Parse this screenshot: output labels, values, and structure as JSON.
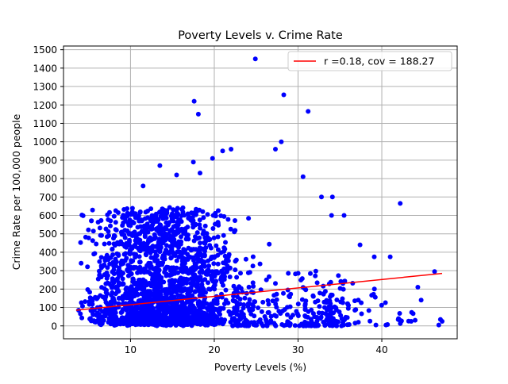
{
  "chart_data": {
    "type": "scatter",
    "title": "Poverty Levels v. Crime Rate",
    "xlabel": "Poverty Levels (%)",
    "ylabel": "Crime Rate per 100,000 people",
    "xlim": [
      2,
      49
    ],
    "ylim": [
      -70,
      1520
    ],
    "xticks": [
      10,
      20,
      30,
      40
    ],
    "yticks": [
      0,
      100,
      200,
      300,
      400,
      500,
      600,
      700,
      800,
      900,
      1000,
      1100,
      1200,
      1300,
      1400,
      1500
    ],
    "grid": true,
    "legend": {
      "placement": "top-right",
      "entries": [
        {
          "label": "r =0.18, cov = 188.27",
          "color": "#ff0000",
          "kind": "line"
        }
      ]
    },
    "series": [
      {
        "kind": "scatter",
        "color": "#0000ff",
        "note_points": "highlighted outliers only; remaining dense cloud drawn as many points",
        "points": [
          [
            3.8,
            85
          ],
          [
            4.1,
            340
          ],
          [
            5.9,
            445
          ],
          [
            7.4,
            490
          ],
          [
            9.0,
            510
          ],
          [
            10.1,
            610
          ],
          [
            11.5,
            760
          ],
          [
            13.5,
            870
          ],
          [
            15.5,
            820
          ],
          [
            17.6,
            1220
          ],
          [
            18.1,
            1150
          ],
          [
            18.3,
            830
          ],
          [
            17.5,
            890
          ],
          [
            19.8,
            910
          ],
          [
            21.0,
            950
          ],
          [
            22.0,
            960
          ],
          [
            24.9,
            1450
          ],
          [
            27.3,
            960
          ],
          [
            28.0,
            1000
          ],
          [
            28.3,
            1255
          ],
          [
            31.2,
            1165
          ],
          [
            30.6,
            810
          ],
          [
            32.8,
            700
          ],
          [
            34.1,
            700
          ],
          [
            34.0,
            600
          ],
          [
            35.5,
            600
          ],
          [
            37.4,
            440
          ],
          [
            39.1,
            375
          ],
          [
            41.0,
            375
          ],
          [
            42.2,
            665
          ],
          [
            44.3,
            210
          ],
          [
            44.7,
            140
          ],
          [
            46.3,
            295
          ],
          [
            46.8,
            5
          ],
          [
            47.2,
            25
          ],
          [
            47.0,
            35
          ],
          [
            43.5,
            25
          ],
          [
            42.0,
            40
          ],
          [
            40.5,
            5
          ],
          [
            39.3,
            5
          ],
          [
            37.2,
            20
          ],
          [
            36.0,
            95
          ]
        ]
      },
      {
        "kind": "line",
        "name": "r =0.18, cov = 188.27",
        "color": "#ff0000",
        "x": [
          3.5,
          47.2
        ],
        "y": [
          85,
          285
        ]
      }
    ]
  }
}
